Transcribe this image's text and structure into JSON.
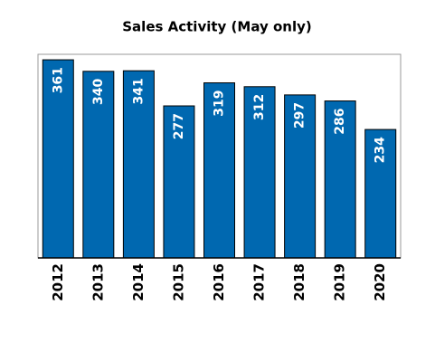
{
  "chart_data": {
    "type": "bar",
    "title": "Sales Activity (May only)",
    "categories": [
      "2012",
      "2013",
      "2014",
      "2015",
      "2016",
      "2017",
      "2018",
      "2019",
      "2020"
    ],
    "values": [
      361,
      340,
      341,
      277,
      319,
      312,
      297,
      286,
      234
    ],
    "color": "#0068b0",
    "ylim": [
      0,
      371
    ]
  }
}
